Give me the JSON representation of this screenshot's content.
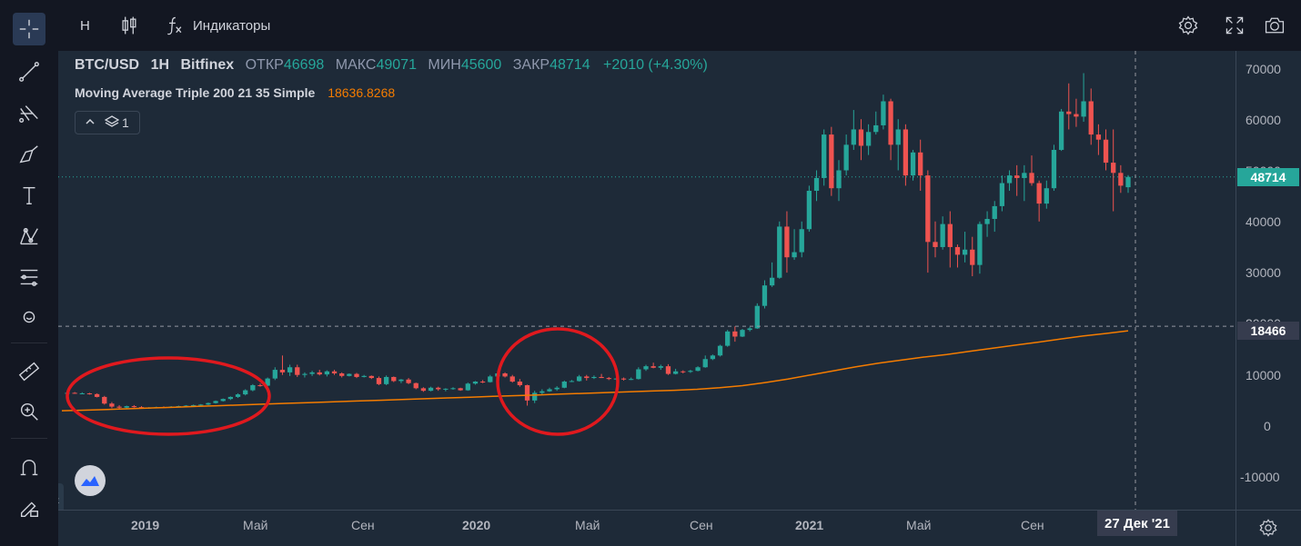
{
  "top_toolbar": {
    "interval": "Н",
    "indicators_label": "Индикаторы"
  },
  "legend": {
    "symbol": "BTC/USD",
    "interval": "1Н",
    "exchange": "Bitfinex",
    "open_label": "ОТКР",
    "open_value": "46698",
    "high_label": "МАКС",
    "high_value": "49071",
    "low_label": "МИН",
    "low_value": "45600",
    "close_label": "ЗАКР",
    "close_value": "48714",
    "change": "+2010 (+4.30%)"
  },
  "indicator": {
    "name": "Moving Average Triple 200 21 35 Simple",
    "value": "18636.8268"
  },
  "collapse": {
    "count": "1"
  },
  "price_axis": {
    "ticks": [
      "70000",
      "60000",
      "50000",
      "40000",
      "30000",
      "20000",
      "10000",
      "0",
      "-10000"
    ],
    "last_price_badge": "48714",
    "crosshair_price_badge": "18466"
  },
  "time_axis": {
    "labels": [
      "2019",
      "Май",
      "Сен",
      "2020",
      "Май",
      "Сен",
      "2021",
      "Май",
      "Сен"
    ],
    "crosshair_date": "27 Дек '21"
  },
  "colors": {
    "up": "#26a69a",
    "down": "#ef5350",
    "ma": "#f57c00",
    "annotation": "#e0191e",
    "background": "#1e2a38"
  },
  "chart_data": {
    "type": "candlestick",
    "series": [
      {
        "name": "BTC/USD",
        "candles": [
          [
            6400,
            6600,
            6300,
            6500
          ],
          [
            6500,
            6650,
            6300,
            6350
          ],
          [
            6350,
            6600,
            6250,
            6400
          ],
          [
            6400,
            6500,
            6150,
            6250
          ],
          [
            6250,
            6400,
            5600,
            5700
          ],
          [
            5700,
            5900,
            4200,
            4400
          ],
          [
            4400,
            4700,
            3500,
            3800
          ],
          [
            3800,
            4100,
            3300,
            3600
          ],
          [
            3600,
            4000,
            3400,
            3900
          ],
          [
            3900,
            4100,
            3600,
            3700
          ],
          [
            3700,
            3900,
            3400,
            3500
          ],
          [
            3500,
            3700,
            3400,
            3600
          ],
          [
            3600,
            3800,
            3500,
            3700
          ],
          [
            3700,
            3850,
            3550,
            3650
          ],
          [
            3650,
            3900,
            3600,
            3800
          ],
          [
            3800,
            4000,
            3700,
            3900
          ],
          [
            3900,
            4100,
            3800,
            4000
          ],
          [
            4000,
            4200,
            3900,
            4100
          ],
          [
            4100,
            4300,
            4000,
            4200
          ],
          [
            4200,
            4600,
            4100,
            4500
          ],
          [
            4500,
            5000,
            4400,
            4900
          ],
          [
            4900,
            5400,
            4800,
            5300
          ],
          [
            5300,
            5800,
            5100,
            5700
          ],
          [
            5700,
            6400,
            5500,
            6200
          ],
          [
            6200,
            7200,
            6000,
            7000
          ],
          [
            7000,
            8200,
            6800,
            8000
          ],
          [
            8000,
            8300,
            7700,
            7900
          ],
          [
            7900,
            9500,
            7800,
            9300
          ],
          [
            9300,
            11500,
            9000,
            11000
          ],
          [
            11000,
            13800,
            10000,
            10500
          ],
          [
            10500,
            12000,
            9800,
            11500
          ],
          [
            11500,
            12000,
            9600,
            10000
          ],
          [
            10000,
            10500,
            9500,
            10200
          ],
          [
            10200,
            10800,
            9800,
            10500
          ],
          [
            10500,
            11000,
            9900,
            10100
          ],
          [
            10100,
            10900,
            9700,
            10700
          ],
          [
            10700,
            11000,
            10000,
            10300
          ],
          [
            10300,
            10500,
            9500,
            9800
          ],
          [
            9800,
            10300,
            9700,
            10200
          ],
          [
            10200,
            10400,
            9400,
            9600
          ],
          [
            9600,
            10000,
            9500,
            9800
          ],
          [
            9800,
            9900,
            9200,
            9400
          ],
          [
            9400,
            9700,
            8000,
            8200
          ],
          [
            8200,
            9900,
            8000,
            9600
          ],
          [
            9600,
            9700,
            8600,
            8800
          ],
          [
            8800,
            9200,
            8400,
            9100
          ],
          [
            9100,
            9400,
            8200,
            8400
          ],
          [
            8400,
            8500,
            7200,
            7400
          ],
          [
            7400,
            7600,
            6700,
            6900
          ],
          [
            6900,
            7700,
            6800,
            7500
          ],
          [
            7500,
            7700,
            6900,
            7200
          ],
          [
            7200,
            7400,
            6800,
            7300
          ],
          [
            7300,
            7600,
            7100,
            7400
          ],
          [
            7400,
            7500,
            6900,
            7000
          ],
          [
            7000,
            8500,
            6900,
            8300
          ],
          [
            8300,
            8800,
            8100,
            8700
          ],
          [
            8700,
            9000,
            8400,
            8600
          ],
          [
            8600,
            10000,
            8500,
            9700
          ],
          [
            9700,
            10400,
            9500,
            10300
          ],
          [
            10300,
            10500,
            9500,
            9700
          ],
          [
            9700,
            10000,
            8500,
            8700
          ],
          [
            8700,
            9200,
            7700,
            8000
          ],
          [
            8000,
            8100,
            4000,
            5000
          ],
          [
            5000,
            6900,
            4500,
            6500
          ],
          [
            6500,
            7200,
            6100,
            6800
          ],
          [
            6800,
            7500,
            6700,
            7200
          ],
          [
            7200,
            7800,
            6900,
            7500
          ],
          [
            7500,
            8900,
            7400,
            8700
          ],
          [
            8700,
            9000,
            8600,
            8800
          ],
          [
            8800,
            10000,
            8700,
            9700
          ],
          [
            9700,
            10000,
            8900,
            9400
          ],
          [
            9400,
            9900,
            9200,
            9600
          ],
          [
            9600,
            10200,
            9400,
            9400
          ],
          [
            9400,
            9600,
            9000,
            9200
          ],
          [
            9200,
            9400,
            9000,
            9300
          ],
          [
            9300,
            9500,
            8900,
            9100
          ],
          [
            9100,
            9500,
            9000,
            9200
          ],
          [
            9200,
            11500,
            9100,
            11100
          ],
          [
            11100,
            12000,
            10800,
            11700
          ],
          [
            11700,
            12400,
            11300,
            11400
          ],
          [
            11400,
            12000,
            11000,
            11700
          ],
          [
            11700,
            12100,
            10000,
            10200
          ],
          [
            10200,
            11200,
            10100,
            10700
          ],
          [
            10700,
            10900,
            10300,
            10600
          ],
          [
            10600,
            11000,
            10400,
            10800
          ],
          [
            10800,
            11700,
            10700,
            11500
          ],
          [
            11500,
            13800,
            11400,
            13100
          ],
          [
            13100,
            14000,
            12900,
            13800
          ],
          [
            13800,
            15900,
            13600,
            15700
          ],
          [
            15700,
            18800,
            15500,
            18500
          ],
          [
            18500,
            19500,
            16500,
            17500
          ],
          [
            17500,
            19000,
            17400,
            18800
          ],
          [
            18800,
            19400,
            18500,
            19100
          ],
          [
            19100,
            24000,
            19000,
            23500
          ],
          [
            23500,
            28500,
            23000,
            27500
          ],
          [
            27500,
            32000,
            27200,
            29000
          ],
          [
            29000,
            40000,
            28800,
            39000
          ],
          [
            39000,
            42000,
            30000,
            33000
          ],
          [
            33000,
            38500,
            32500,
            34000
          ],
          [
            34000,
            40000,
            33000,
            38500
          ],
          [
            38500,
            47000,
            38000,
            46000
          ],
          [
            46000,
            50000,
            44000,
            48500
          ],
          [
            48500,
            58000,
            47000,
            57000
          ],
          [
            57000,
            58500,
            45000,
            46500
          ],
          [
            46500,
            52000,
            44000,
            50000
          ],
          [
            50000,
            57000,
            49000,
            55000
          ],
          [
            55000,
            61800,
            54000,
            58000
          ],
          [
            58000,
            60000,
            52000,
            54800
          ],
          [
            54800,
            59000,
            53000,
            57500
          ],
          [
            57500,
            61500,
            57000,
            58800
          ],
          [
            58800,
            64800,
            58000,
            63500
          ],
          [
            63500,
            64000,
            52000,
            55000
          ],
          [
            55000,
            60000,
            50000,
            58000
          ],
          [
            58000,
            59000,
            47000,
            49000
          ],
          [
            49000,
            54000,
            48000,
            53500
          ],
          [
            53500,
            56000,
            46000,
            49000
          ],
          [
            49000,
            50000,
            30000,
            36000
          ],
          [
            36000,
            40000,
            33000,
            35000
          ],
          [
            35000,
            41000,
            34500,
            39500
          ],
          [
            39500,
            42000,
            31000,
            35000
          ],
          [
            35000,
            35500,
            31000,
            33500
          ],
          [
            33500,
            38000,
            32000,
            34500
          ],
          [
            34500,
            37000,
            29300,
            31500
          ],
          [
            31500,
            40000,
            29800,
            39500
          ],
          [
            39500,
            42000,
            37000,
            40500
          ],
          [
            40500,
            44000,
            38000,
            43000
          ],
          [
            43000,
            49000,
            42000,
            47500
          ],
          [
            47500,
            50000,
            46000,
            49000
          ],
          [
            49000,
            51000,
            45000,
            48500
          ],
          [
            48500,
            51000,
            44000,
            49500
          ],
          [
            49500,
            52900,
            47000,
            47500
          ],
          [
            47500,
            48000,
            40000,
            43500
          ],
          [
            43500,
            48000,
            42500,
            46500
          ],
          [
            46500,
            55000,
            46000,
            54000
          ],
          [
            54000,
            62000,
            53800,
            61500
          ],
          [
            61500,
            67000,
            58000,
            61000
          ],
          [
            61000,
            64000,
            58500,
            60500
          ],
          [
            60500,
            69000,
            59500,
            63500
          ],
          [
            63500,
            66000,
            55000,
            57000
          ],
          [
            57000,
            59000,
            53000,
            56000
          ],
          [
            56000,
            58000,
            50000,
            51500
          ],
          [
            51500,
            58000,
            42000,
            49500
          ],
          [
            49500,
            51000,
            45600,
            47000
          ],
          [
            46698,
            49071,
            45600,
            48714
          ]
        ]
      },
      {
        "name": "Moving Average Triple 200 21 35 Simple",
        "values": [
          3000,
          3100,
          3250,
          3400,
          3550,
          3700,
          3850,
          4000,
          4150,
          4300,
          4450,
          4600,
          4750,
          4900,
          5050,
          5200,
          5350,
          5500,
          5650,
          5800,
          5950,
          6100,
          6250,
          6400,
          6550,
          6700,
          6850,
          7000,
          7200,
          7500,
          7900,
          8500,
          9200,
          10000,
          10800,
          11600,
          12300,
          12900,
          13500,
          14000,
          14600,
          15200,
          15800,
          16400,
          17000,
          17600,
          18100,
          18636.8268
        ]
      }
    ],
    "annotations": [
      {
        "shape": "ellipse",
        "label": ""
      },
      {
        "shape": "ellipse",
        "label": ""
      }
    ],
    "ylim": [
      -10000,
      70000
    ],
    "grid": false
  }
}
